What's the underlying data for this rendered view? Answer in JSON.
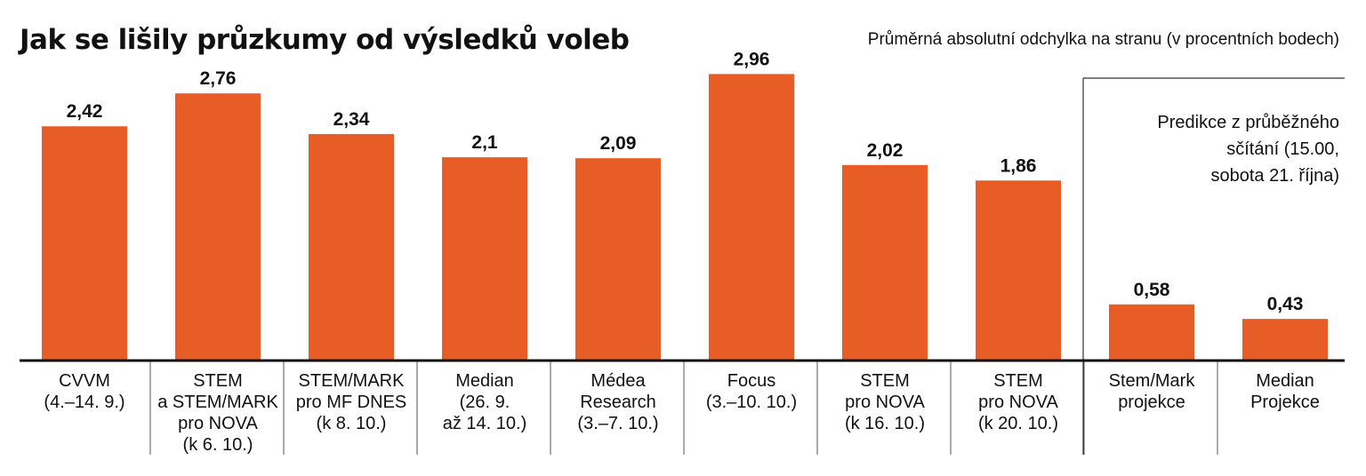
{
  "chart_data": {
    "type": "bar",
    "title": "Jak se lišily průzkumy od výsledků voleb",
    "subtitle": "Průměrná absolutní odchylka na stranu (v procentních bodech)",
    "categories": [
      [
        "CVVM",
        "(4.–14. 9.)"
      ],
      [
        "STEM",
        "a STEM/MARK",
        "pro NOVA",
        "(k 6. 10.)"
      ],
      [
        "STEM/MARK",
        "pro MF DNES",
        "(k 8. 10.)"
      ],
      [
        "Median",
        "(26. 9.",
        "až 14. 10.)"
      ],
      [
        "Médea",
        "Research",
        "(3.–7. 10.)"
      ],
      [
        "Focus",
        "(3.–10. 10.)"
      ],
      [
        "STEM",
        "pro NOVA",
        "(k 16. 10.)"
      ],
      [
        "STEM",
        "pro NOVA",
        "(k 20. 10.)"
      ],
      [
        "Stem/Mark",
        "projekce"
      ],
      [
        "Median",
        "Projekce"
      ]
    ],
    "values": [
      2.42,
      2.76,
      2.34,
      2.1,
      2.09,
      2.96,
      2.02,
      1.86,
      0.58,
      0.43
    ],
    "value_labels": [
      "2,42",
      "2,76",
      "2,34",
      "2,1",
      "2,09",
      "2,96",
      "2,02",
      "1,86",
      "0,58",
      "0,43"
    ],
    "ylim": [
      0,
      3.4
    ],
    "bar_color": "#e85d26",
    "grid": false,
    "annotation": {
      "lines": [
        "Predikce z průběžného",
        "sčítání (15.00,",
        "sobota 21. října)"
      ],
      "applies_to": [
        "Stem/Mark projekce",
        "Median Projekce"
      ]
    }
  }
}
